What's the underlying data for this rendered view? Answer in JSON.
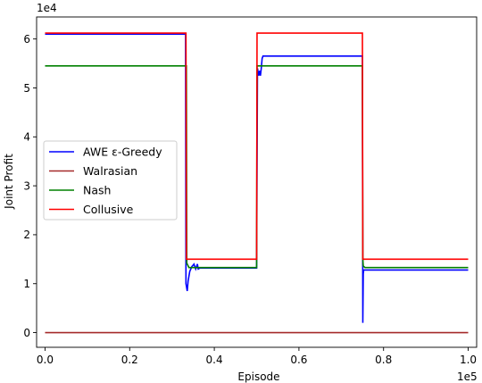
{
  "chart_data": {
    "type": "line",
    "xlabel": "Episode",
    "ylabel": "Joint Profit",
    "x_multiplier_label": "1e5",
    "y_multiplier_label": "1e4",
    "xlim": [
      -0.02,
      1.02
    ],
    "ylim": [
      -0.3,
      6.45
    ],
    "x_ticks": [
      0.0,
      0.2,
      0.4,
      0.6,
      0.8,
      1.0
    ],
    "x_tick_labels": [
      "0.0",
      "0.2",
      "0.4",
      "0.6",
      "0.8",
      "1.0"
    ],
    "y_ticks": [
      0,
      1,
      2,
      3,
      4,
      5,
      6
    ],
    "y_tick_labels": [
      "0",
      "1",
      "2",
      "3",
      "4",
      "5",
      "6"
    ],
    "grid": false,
    "legend_position": "center-left",
    "series": [
      {
        "name": "AWE ε-Greedy",
        "color": "#0000ff",
        "x": [
          0.0,
          0.332,
          0.333,
          0.336,
          0.338,
          0.342,
          0.347,
          0.352,
          0.356,
          0.36,
          0.362,
          0.366,
          0.5,
          0.502,
          0.505,
          0.507,
          0.509,
          0.511,
          0.513,
          0.515,
          0.75,
          0.751,
          0.752,
          0.753,
          0.755,
          0.758,
          1.0
        ],
        "y": [
          6.1,
          6.1,
          1.0,
          0.85,
          1.05,
          1.25,
          1.35,
          1.4,
          1.3,
          1.4,
          1.3,
          1.32,
          1.32,
          5.4,
          5.25,
          5.35,
          5.25,
          5.4,
          5.6,
          5.65,
          5.65,
          0.2,
          1.2,
          1.28,
          1.28,
          1.28,
          1.28
        ]
      },
      {
        "name": "Walrasian",
        "color": "#a52a2a",
        "x": [
          0.0,
          1.0
        ],
        "y": [
          0.0,
          0.0
        ]
      },
      {
        "name": "Nash",
        "color": "#008000",
        "x": [
          0.0,
          0.334,
          0.335,
          0.34,
          0.5,
          0.501,
          0.75,
          0.751,
          0.752,
          0.756,
          1.0
        ],
        "y": [
          5.45,
          5.45,
          1.42,
          1.33,
          1.33,
          5.45,
          5.45,
          1.5,
          1.36,
          1.33,
          1.33
        ]
      },
      {
        "name": "Collusive",
        "color": "#ff0000",
        "x": [
          0.0,
          0.333,
          0.334,
          0.5,
          0.501,
          0.75,
          0.751,
          1.0
        ],
        "y": [
          6.12,
          6.12,
          1.5,
          1.5,
          6.12,
          6.12,
          1.5,
          1.5
        ]
      }
    ]
  }
}
